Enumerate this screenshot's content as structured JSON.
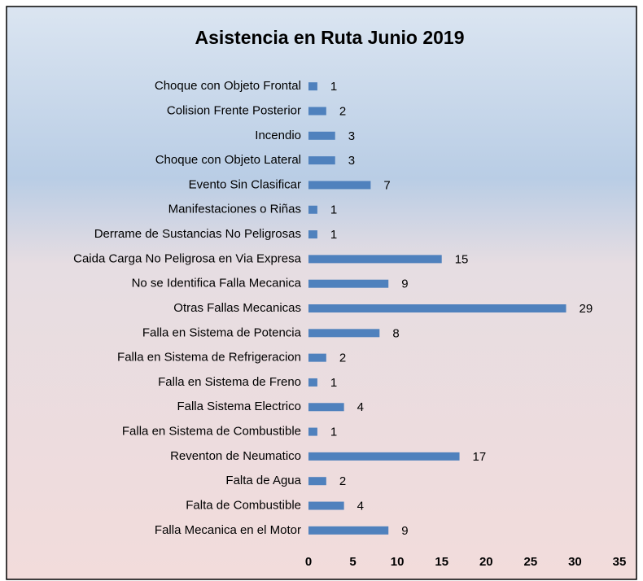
{
  "chart_data": {
    "type": "bar",
    "orientation": "horizontal",
    "title": "Asistencia en Ruta  Junio 2019",
    "categories": [
      "Choque con Objeto Frontal",
      "Colision Frente Posterior",
      "Incendio",
      "Choque con Objeto Lateral",
      "Evento Sin Clasificar",
      "Manifestaciones o Riñas",
      "Derrame de Sustancias No Peligrosas",
      "Caida Carga No Peligrosa en Via Expresa",
      "No se Identifica Falla Mecanica",
      "Otras Fallas Mecanicas",
      "Falla en Sistema de Potencia",
      "Falla en Sistema de Refrigeracion",
      "Falla en Sistema de Freno",
      "Falla Sistema Electrico",
      "Falla en Sistema de Combustible",
      "Reventon de Neumatico",
      "Falta de Agua",
      "Falta de Combustible",
      "Falla Mecanica en el Motor"
    ],
    "values": [
      1,
      2,
      3,
      3,
      7,
      1,
      1,
      15,
      9,
      29,
      8,
      2,
      1,
      4,
      1,
      17,
      2,
      4,
      9
    ],
    "color": "#4f81bd",
    "xlim": [
      0,
      35
    ],
    "xticks": [
      0,
      5,
      10,
      15,
      20,
      25,
      30,
      35
    ],
    "grid": false
  }
}
